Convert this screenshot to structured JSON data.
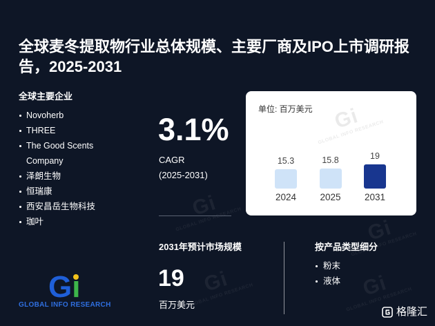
{
  "title": "全球麦冬提取物行业总体规模、主要厂商及IPO上市调研报告，2025-2031",
  "companies": {
    "heading": "全球主要企业",
    "items": [
      "Novoherb",
      "THREE",
      "The Good Scents Company",
      "泽朗生物",
      "恒瑞康",
      "西安昌岳生物科技",
      "珈叶"
    ]
  },
  "cagr": {
    "value": "3.1%",
    "label": "CAGR",
    "period": "(2025-2031)"
  },
  "market_size": {
    "heading": "2031年预计市场规模",
    "value": "19",
    "unit": "百万美元"
  },
  "segments": {
    "heading": "按产品类型细分",
    "items": [
      "粉末",
      "液体"
    ]
  },
  "chart_data": {
    "type": "bar",
    "unit_label": "单位: 百万美元",
    "categories": [
      "2024",
      "2025",
      "2031"
    ],
    "values": [
      15.3,
      15.8,
      19
    ],
    "bar_colors": [
      "#cfe3f8",
      "#cfe3f8",
      "#18368f"
    ],
    "axes_visible": false,
    "grid": false,
    "legend": "none"
  },
  "logo": {
    "mark": "Gi",
    "name": "GLOBAL INFO RESEARCH"
  },
  "watermark": {
    "mark": "Gi",
    "text": "GLOBAL INFO RESEARCH"
  },
  "brand": {
    "name": "格隆汇",
    "icon": "gelonghui-logo-icon"
  },
  "colors": {
    "background": "#0e1626",
    "text": "#ffffff",
    "card": "#ffffff",
    "logo_blue": "#1f5fd8",
    "logo_green": "#3db54a",
    "logo_yellow": "#f2c21b"
  }
}
